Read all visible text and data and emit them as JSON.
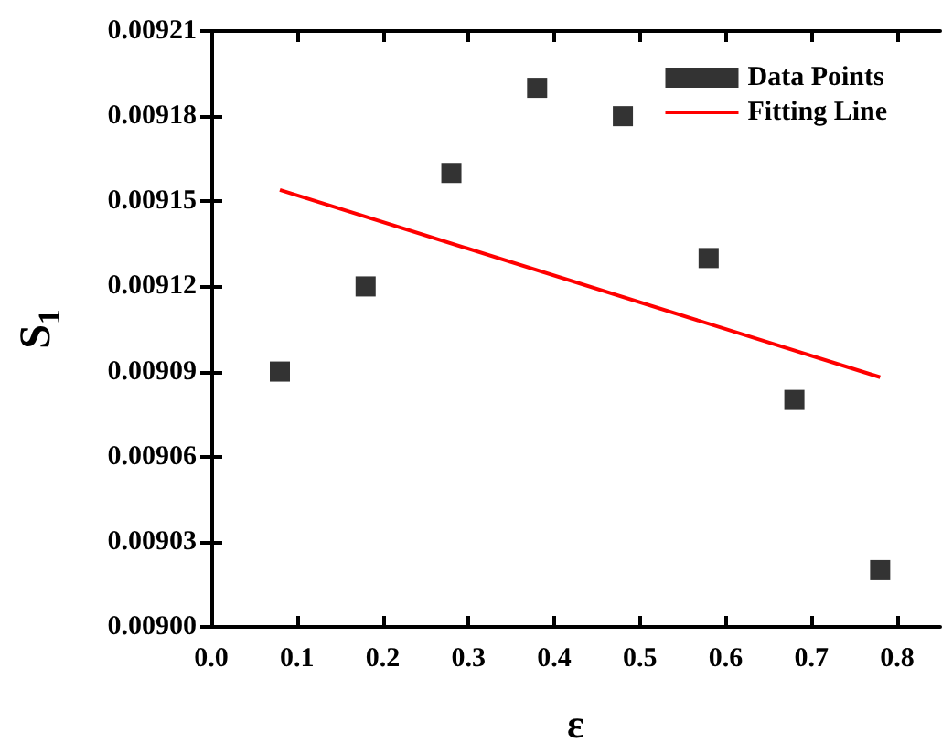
{
  "chart_data": {
    "type": "scatter",
    "xlabel": "ε",
    "ylabel": "S$_{1}$",
    "xlim": [
      0,
      0.85
    ],
    "xticks": [
      {
        "value": 0,
        "label": "0.0"
      },
      0.1,
      0.2,
      0.3,
      0.4,
      0.5,
      0.6,
      0.7,
      0.8
    ],
    "ylim": [
      0.009,
      0.00921
    ],
    "yticks": [
      {
        "value": 0.009,
        "label": "0.00900"
      },
      0.00903,
      0.00906,
      0.00909,
      0.00912,
      0.00915,
      0.00918,
      0.00921
    ],
    "grid": false,
    "legend": "top right",
    "series": [
      {
        "name": "Data Points",
        "type": "scatter",
        "marker": "square",
        "color": "#000000",
        "x": [
          0.08,
          0.18,
          0.28,
          0.38,
          0.48,
          0.58,
          0.68,
          0.78
        ],
        "values": [
          0.00909,
          0.00912,
          0.00916,
          0.00919,
          0.00918,
          0.00913,
          0.00908,
          0.00902
        ]
      },
      {
        "name": "Fitting Line",
        "type": "line",
        "marker": "none",
        "line_style": "solid",
        "color": "#ff0000",
        "x": [
          0.08,
          0.78
        ],
        "values": [
          0.009154,
          0.009088
        ]
      }
    ]
  }
}
